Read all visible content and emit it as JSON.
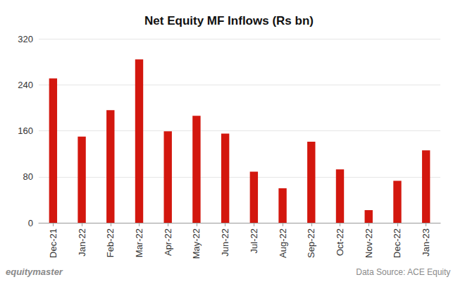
{
  "chart_data": {
    "type": "bar",
    "title": "Net Equity MF Inflows (Rs bn)",
    "categories": [
      "Dec-21",
      "Jan-22",
      "Feb-22",
      "Mar-22",
      "Apr-22",
      "May-22",
      "Jun-22",
      "Jul-22",
      "Aug-22",
      "Sep-22",
      "Oct-22",
      "Nov-22",
      "Dec-22",
      "Jan-23"
    ],
    "values": [
      251,
      150,
      196,
      284,
      159,
      186,
      155,
      89,
      60,
      141,
      93,
      22,
      73,
      126
    ],
    "color": "#d3170e",
    "ylim": [
      0,
      320
    ],
    "yticks": [
      0,
      80,
      160,
      240,
      320
    ],
    "grid": true,
    "annotations": [
      "equitymaster",
      "Data Source: ACE Equity"
    ]
  }
}
